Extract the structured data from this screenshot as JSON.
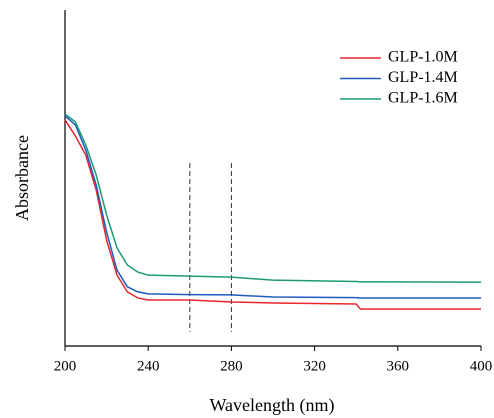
{
  "chart_data": {
    "type": "line",
    "x_label": "Wavelength (nm)",
    "y_label": "Absorbance",
    "x": [
      200,
      205,
      210,
      215,
      220,
      225,
      230,
      235,
      240,
      260,
      280,
      300,
      340,
      342,
      400
    ],
    "series": [
      {
        "name": "GLP-1.0M",
        "color": "#e8262b",
        "values": [
          0.673,
          0.625,
          0.568,
          0.464,
          0.315,
          0.211,
          0.161,
          0.143,
          0.137,
          0.137,
          0.131,
          0.128,
          0.125,
          0.11,
          0.11
        ]
      },
      {
        "name": "GLP-1.4M",
        "color": "#1f5bbf",
        "values": [
          0.685,
          0.658,
          0.583,
          0.479,
          0.339,
          0.226,
          0.176,
          0.161,
          0.155,
          0.153,
          0.152,
          0.146,
          0.144,
          0.143,
          0.143
        ]
      },
      {
        "name": "GLP-1.6M",
        "color": "#1d9a72",
        "values": [
          0.69,
          0.667,
          0.598,
          0.509,
          0.39,
          0.292,
          0.241,
          0.22,
          0.211,
          0.208,
          0.205,
          0.196,
          0.192,
          0.191,
          0.19
        ]
      }
    ],
    "xlim": [
      200,
      400
    ],
    "xticks": [
      200,
      240,
      280,
      320,
      360,
      400
    ],
    "ylim": [
      0,
      1
    ],
    "vlines": [
      260,
      280
    ],
    "legend": "upper right"
  }
}
